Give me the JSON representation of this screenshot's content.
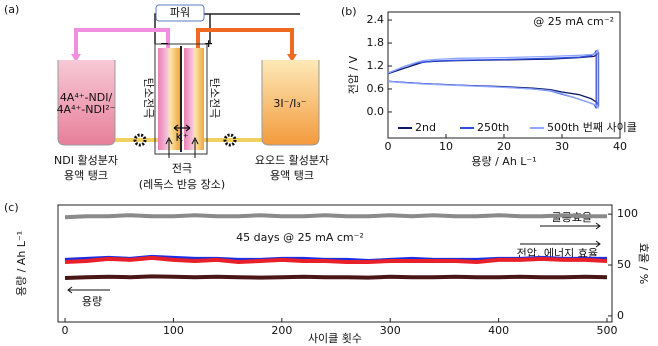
{
  "diagram": {
    "label": "(a)",
    "power": "파워",
    "minus": "−",
    "plus": "+",
    "left_electrode": "탄소전극",
    "right_electrode": "탄소전극",
    "ion": "K⁺",
    "left_tank": {
      "line1": "4A⁴⁺-NDI/",
      "line2": "4A⁴⁺-NDI²⁻",
      "caption1": "NDI 활성분자",
      "caption2": "용액 탱크"
    },
    "right_tank": {
      "line1": "3I⁻/I₃⁻",
      "caption1": "요오드 활성분자",
      "caption2": "용액 탱크"
    },
    "electrode_caption1": "전극",
    "electrode_caption2": "(레독스 반응 장소)"
  },
  "chart_data": [
    {
      "type": "line",
      "label": "(b)",
      "xlabel": "용량 / Ah L⁻¹",
      "ylabel": "전압 / V",
      "annotation": "@ 25 mA cm⁻²",
      "xlim": [
        0,
        40
      ],
      "xticks": [
        0,
        10,
        20,
        30,
        40
      ],
      "ylim": [
        -0.68,
        2.61
      ],
      "yticks": [
        {
          "value": 0,
          "label": "0.0"
        },
        0.6,
        1.2,
        1.8,
        2.4
      ],
      "series": [
        {
          "name": "2nd",
          "color": "#0d1a6b",
          "x": [
            0,
            1,
            3,
            5,
            6,
            8,
            12,
            20,
            28,
            33,
            35.5,
            36,
            36.3,
            36.3,
            36,
            35,
            33,
            30,
            28,
            25,
            20,
            12,
            6,
            2,
            0
          ],
          "values": [
            1.0,
            1.05,
            1.15,
            1.25,
            1.3,
            1.32,
            1.34,
            1.36,
            1.38,
            1.42,
            1.45,
            1.5,
            1.55,
            0.15,
            0.25,
            0.35,
            0.45,
            0.52,
            0.58,
            0.62,
            0.66,
            0.7,
            0.74,
            0.78,
            0.8
          ]
        },
        {
          "name": "250th",
          "color": "#2f4fe0",
          "x": [
            0,
            1,
            3,
            5,
            6,
            8,
            12,
            20,
            28,
            33,
            35,
            35.6,
            35.9,
            35.9,
            35.5,
            34,
            32,
            30,
            28,
            25,
            20,
            12,
            6,
            2,
            0
          ],
          "values": [
            1.0,
            1.07,
            1.2,
            1.28,
            1.3,
            1.33,
            1.35,
            1.37,
            1.4,
            1.43,
            1.47,
            1.52,
            1.6,
            0.1,
            0.2,
            0.28,
            0.38,
            0.46,
            0.55,
            0.6,
            0.65,
            0.7,
            0.74,
            0.78,
            0.8
          ]
        },
        {
          "name": "500th 번째 사이클",
          "color": "#8fa6ff",
          "x": [
            0,
            1,
            3,
            5,
            6,
            8,
            12,
            20,
            28,
            33,
            35,
            35.8,
            36.2,
            36.2,
            35.8,
            34,
            32,
            30,
            28,
            25,
            20,
            12,
            6,
            2,
            0
          ],
          "values": [
            1.02,
            1.08,
            1.2,
            1.3,
            1.34,
            1.37,
            1.4,
            1.42,
            1.45,
            1.48,
            1.5,
            1.52,
            1.62,
            0.1,
            0.18,
            0.28,
            0.38,
            0.48,
            0.56,
            0.6,
            0.64,
            0.69,
            0.73,
            0.77,
            0.8
          ]
        }
      ]
    },
    {
      "type": "line",
      "label": "(c)",
      "xlabel": "사이클 횟수",
      "ylabel": "용량 / Ah L⁻¹",
      "y2label": "효율 / %",
      "annotations": [
        "45 days @ 25 mA cm⁻²",
        "쿨롱효율",
        "전압, 에너지 효율",
        "용량"
      ],
      "xlim": [
        -6.5,
        504.6
      ],
      "xticks": [
        0,
        100,
        200,
        300,
        400,
        500
      ],
      "ylim": [
        -1.5,
        27.25
      ],
      "y2lim": [
        -6,
        109
      ],
      "y2ticks": [
        0,
        50,
        100
      ],
      "x": [
        0,
        20,
        40,
        60,
        80,
        100,
        120,
        140,
        160,
        180,
        200,
        220,
        240,
        260,
        280,
        300,
        320,
        340,
        360,
        380,
        400,
        420,
        440,
        460,
        480,
        500
      ],
      "series": [
        {
          "color": "#8a8a8a",
          "axis": "y2",
          "values": [
            97,
            98,
            98,
            99,
            98,
            98,
            99,
            98,
            98,
            99,
            98,
            98,
            99,
            98,
            98,
            99,
            98,
            99,
            98,
            98,
            99,
            98,
            98,
            99,
            98,
            98
          ]
        },
        {
          "color": "#1a2ee8",
          "axis": "y2",
          "values": [
            55,
            56,
            57,
            56,
            58,
            57,
            56,
            56,
            55,
            55,
            56,
            56,
            55,
            55,
            54,
            55,
            56,
            55,
            55,
            55,
            56,
            56,
            57,
            56,
            56,
            56
          ]
        },
        {
          "color": "#e8202a",
          "axis": "y2",
          "values": [
            53,
            54,
            56,
            55,
            57,
            55,
            54,
            55,
            53,
            54,
            55,
            54,
            54,
            53,
            53,
            54,
            54,
            54,
            54,
            53,
            55,
            55,
            56,
            55,
            55,
            54
          ]
        },
        {
          "color": "#4a1616",
          "values": [
            9.3,
            9.5,
            9.6,
            9.5,
            9.7,
            9.6,
            9.5,
            9.6,
            9.5,
            9.4,
            9.5,
            9.6,
            9.5,
            9.5,
            9.4,
            9.6,
            9.5,
            9.5,
            9.6,
            9.5,
            9.5,
            9.6,
            9.5,
            9.5,
            9.6,
            9.5
          ]
        }
      ]
    }
  ]
}
